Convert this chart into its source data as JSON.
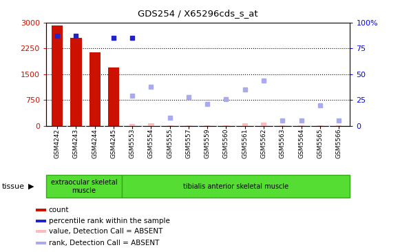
{
  "title": "GDS254 / X65296cds_s_at",
  "samples": [
    "GSM4242",
    "GSM4243",
    "GSM4244",
    "GSM4245",
    "GSM5553",
    "GSM5554",
    "GSM5555",
    "GSM5557",
    "GSM5559",
    "GSM5560",
    "GSM5561",
    "GSM5562",
    "GSM5563",
    "GSM5564",
    "GSM5565",
    "GSM5566"
  ],
  "bar_values": [
    2920,
    2560,
    2130,
    1700,
    null,
    null,
    null,
    null,
    null,
    null,
    null,
    null,
    null,
    null,
    null,
    null
  ],
  "pink_bars": [
    null,
    null,
    null,
    null,
    55,
    75,
    15,
    25,
    15,
    25,
    80,
    95,
    20,
    20,
    15,
    15
  ],
  "blue_pct": [
    87,
    87,
    null,
    85,
    85,
    null,
    null,
    null,
    null,
    null,
    null,
    null,
    null,
    null,
    null,
    null
  ],
  "lb_pct": [
    null,
    null,
    null,
    null,
    29,
    38,
    8,
    28,
    21,
    26,
    35,
    44,
    5,
    5,
    20,
    5
  ],
  "tissue_groups": [
    {
      "label": "extraocular skeletal\nmuscle",
      "start": 0,
      "end": 4
    },
    {
      "label": "tibialis anterior skeletal muscle",
      "start": 4,
      "end": 16
    }
  ],
  "ylim_left": [
    0,
    3000
  ],
  "ylim_right": [
    0,
    100
  ],
  "yticks_left": [
    0,
    750,
    1500,
    2250,
    3000
  ],
  "yticks_right": [
    0,
    25,
    50,
    75,
    100
  ],
  "bar_color": "#CC1100",
  "blue_dot_color": "#2222CC",
  "pink_bar_color": "#FFBBBB",
  "light_blue_dot_color": "#AAAAEE",
  "tissue_bg_color": "#55DD33",
  "tissue_border_color": "#33AA11",
  "xticklabel_bg": "#DDDDDD",
  "legend_items": [
    {
      "color": "#CC1100",
      "label": "count"
    },
    {
      "color": "#2222CC",
      "label": "percentile rank within the sample"
    },
    {
      "color": "#FFBBBB",
      "label": "value, Detection Call = ABSENT"
    },
    {
      "color": "#AAAAEE",
      "label": "rank, Detection Call = ABSENT"
    }
  ]
}
